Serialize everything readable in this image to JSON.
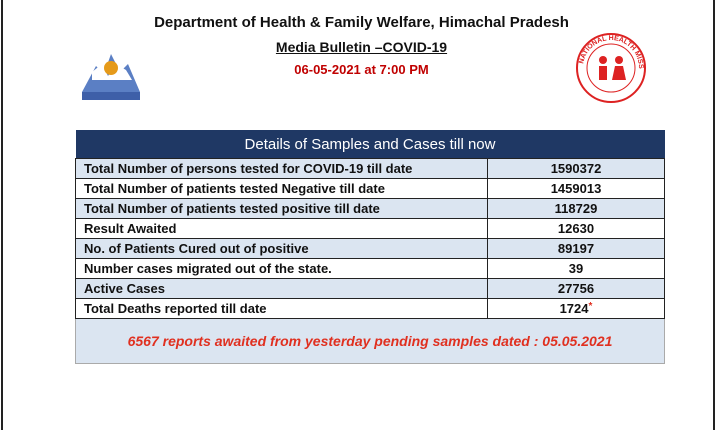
{
  "header": {
    "title": "Department of Health & Family Welfare, Himachal Pradesh",
    "subtitle": "Media Bulletin –COVID-19",
    "date": "06-05-2021 at 7:00 PM",
    "logo_right_text": "NATIONAL HEALTH MISSION"
  },
  "table": {
    "title": "Details of Samples and Cases till now",
    "rows": [
      [
        "Total Number of persons tested for COVID-19 till date",
        "1590372"
      ],
      [
        "Total Number of patients tested Negative till date",
        "1459013"
      ],
      [
        "Total Number of patients tested positive till date",
        "118729"
      ],
      [
        "Result Awaited",
        "12630"
      ],
      [
        "No. of Patients Cured out of positive",
        "89197"
      ],
      [
        "Number cases migrated out of the state.",
        "39"
      ],
      [
        "Active Cases",
        "27756"
      ],
      [
        "Total Deaths reported till date",
        "1724"
      ]
    ],
    "deaths_note_marker": "*",
    "footer": "6567 reports awaited from yesterday pending samples dated : 05.05.2021"
  }
}
